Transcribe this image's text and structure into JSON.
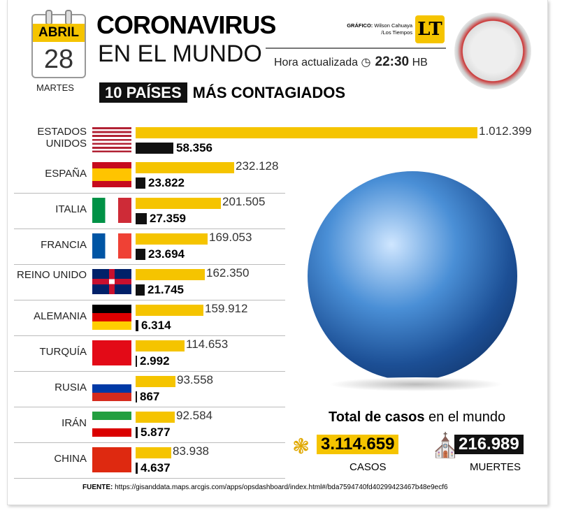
{
  "header": {
    "month": "ABRIL",
    "day": "28",
    "weekday": "MARTES",
    "title1": "CORONAVIRUS",
    "title2": "EN EL MUNDO",
    "credit_label": "GRÁFICO:",
    "credit_name": "Wilson Cahuaya",
    "credit_org": "/Los Tiempos",
    "logo": "LT",
    "updated_label": "Hora actualizada",
    "time": "22:30",
    "tz": "HB",
    "subtitle_box": "10 PAÍSES",
    "subtitle": "MÁS CONTAGIADOS"
  },
  "chart_data": {
    "type": "bar",
    "title": "10 PAÍSES MÁS CONTAGIADOS",
    "categories": [
      "ESTADOS UNIDOS",
      "ESPAÑA",
      "ITALIA",
      "FRANCIA",
      "REINO UNIDO",
      "ALEMANIA",
      "TURQUÍA",
      "RUSIA",
      "IRÁN",
      "CHINA"
    ],
    "series": [
      {
        "name": "Casos",
        "color": "#f5c400",
        "values": [
          1012399,
          232128,
          201505,
          169053,
          162350,
          159912,
          114653,
          93558,
          92584,
          83938
        ],
        "labels": [
          "1.012.399",
          "232.128",
          "201.505",
          "169.053",
          "162.350",
          "159.912",
          "114.653",
          "93.558",
          "92.584",
          "83.938"
        ]
      },
      {
        "name": "Muertes",
        "color": "#111111",
        "values": [
          58356,
          23822,
          27359,
          23694,
          21745,
          6314,
          2992,
          867,
          5877,
          4637
        ],
        "labels": [
          "58.356",
          "23.822",
          "27.359",
          "23.694",
          "21.745",
          "6.314",
          "2.992",
          "867",
          "5.877",
          "4.637"
        ]
      }
    ]
  },
  "totals": {
    "heading_bold": "Total de casos",
    "heading_rest": " en el mundo",
    "cases": "3.114.659",
    "cases_label": "CASOS",
    "deaths": "216.989",
    "deaths_label": "MUERTES"
  },
  "footer": {
    "label": "FUENTE:",
    "url": "https://gisanddata.maps.arcgis.com/apps/opsdashboard/index.html#/bda7594740fd40299423467b48e9ecf6"
  }
}
